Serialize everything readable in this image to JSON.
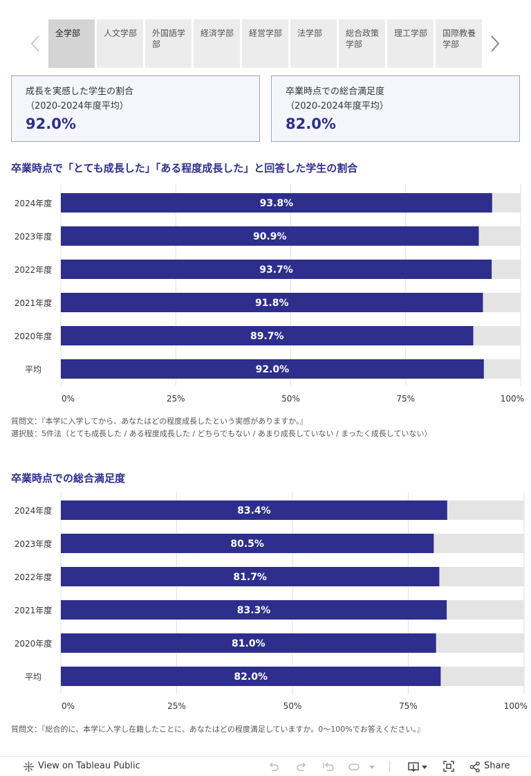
{
  "tabs": [
    {
      "label": "全学部",
      "active": true
    },
    {
      "label": "人文学部"
    },
    {
      "label": "外国語学部"
    },
    {
      "label": "経済学部"
    },
    {
      "label": "経営学部"
    },
    {
      "label": "法学部"
    },
    {
      "label": "総合政策学部"
    },
    {
      "label": "理工学部"
    },
    {
      "label": "国際教養学部"
    }
  ],
  "kpis": [
    {
      "label": "成長を実感した学生の割合\n（2020-2024年度平均）",
      "value": "92.0%"
    },
    {
      "label": "卒業時点での総合満足度\n（2020-2024年度平均）",
      "value": "82.0%"
    }
  ],
  "colors": {
    "bar": "#2e2e8c",
    "track": "#e4e4e4",
    "accent": "#2e2e8c"
  },
  "chart_data": [
    {
      "type": "bar",
      "orientation": "horizontal",
      "title": "卒業時点で「とても成長した」「ある程度成長した」と回答した学生の割合",
      "categories": [
        "2024年度",
        "2023年度",
        "2022年度",
        "2021年度",
        "2020年度",
        "平均"
      ],
      "values": [
        93.8,
        90.9,
        93.7,
        91.8,
        89.7,
        92.0
      ],
      "value_labels": [
        "93.8%",
        "90.9%",
        "93.7%",
        "91.8%",
        "89.7%",
        "92.0%"
      ],
      "xlim": [
        0,
        100
      ],
      "x_ticks": [
        0,
        25,
        50,
        75,
        100
      ],
      "x_tick_labels": [
        "0%",
        "25%",
        "50%",
        "75%",
        "100%"
      ],
      "notes": [
        "質問文：『本学に入学してから、あなたはどの程度成長したという実感がありますか。』",
        "選択肢：5件法（とても成長した / ある程度成長した / どちらでもない / あまり成長していない / まったく成長していない）"
      ]
    },
    {
      "type": "bar",
      "orientation": "horizontal",
      "title": "卒業時点での総合満足度",
      "categories": [
        "2024年度",
        "2023年度",
        "2022年度",
        "2021年度",
        "2020年度",
        "平均"
      ],
      "values": [
        83.4,
        80.5,
        81.7,
        83.3,
        81.0,
        82.0
      ],
      "value_labels": [
        "83.4%",
        "80.5%",
        "81.7%",
        "83.3%",
        "81.0%",
        "82.0%"
      ],
      "xlim": [
        0,
        100
      ],
      "x_ticks": [
        0,
        25,
        50,
        75,
        100
      ],
      "x_tick_labels": [
        "0%",
        "25%",
        "50%",
        "75%",
        "100%"
      ],
      "notes": [
        "質問文：『総合的に、本学に入学し在籍したことに、あなたはどの程度満足していますか。0〜100%でお答えください。』"
      ]
    }
  ],
  "footer": {
    "view_label": "View on Tableau Public",
    "share_label": "Share"
  }
}
